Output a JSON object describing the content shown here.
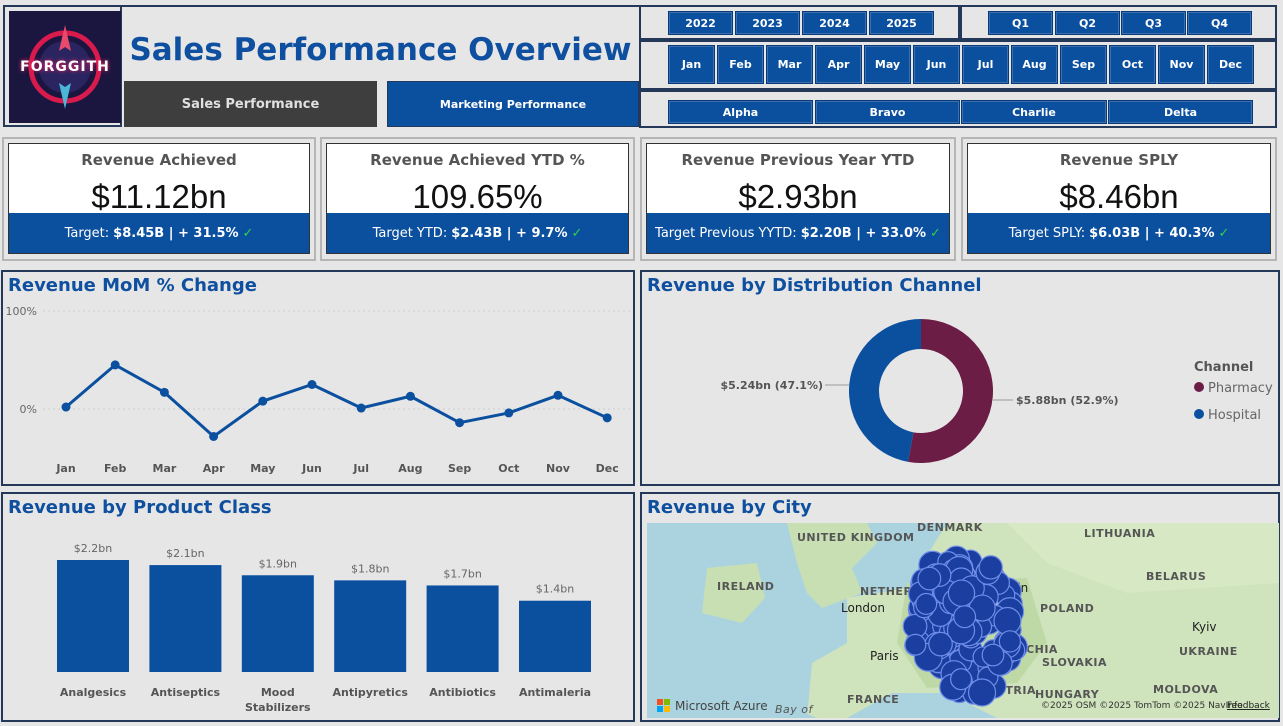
{
  "header": {
    "logo_text": "FORGGITH",
    "title": "Sales Performance Overview",
    "nav": {
      "sales": "Sales Performance",
      "marketing": "Marketing Performance"
    }
  },
  "slicers": {
    "years": [
      "2022",
      "2023",
      "2024",
      "2025"
    ],
    "quarters": [
      "Q1",
      "Q2",
      "Q3",
      "Q4"
    ],
    "months": [
      "Jan",
      "Feb",
      "Mar",
      "Apr",
      "May",
      "Jun",
      "Jul",
      "Aug",
      "Sep",
      "Oct",
      "Nov",
      "Dec"
    ],
    "teams": [
      "Alpha",
      "Bravo",
      "Charlie",
      "Delta"
    ]
  },
  "kpis": [
    {
      "title": "Revenue Achieved",
      "value": "$11.12bn",
      "foot_label": "Target:",
      "foot_value": "$8.45B | + 31.5%",
      "check": "✓"
    },
    {
      "title": "Revenue Achieved YTD %",
      "value": "109.65%",
      "foot_label": "Target YTD:",
      "foot_value": "$2.43B | + 9.7%",
      "check": "✓"
    },
    {
      "title": "Revenue Previous Year YTD",
      "value": "$2.93bn",
      "foot_label": "Target Previous YYTD:",
      "foot_value": "$2.20B | + 33.0%",
      "check": "✓"
    },
    {
      "title": "Revenue SPLY",
      "value": "$8.46bn",
      "foot_label": "Target SPLY:",
      "foot_value": "$6.03B | + 40.3%",
      "check": "✓"
    }
  ],
  "mom_chart": {
    "title": "Revenue MoM % Change",
    "y_ticks": [
      "100%",
      "0%"
    ]
  },
  "channel_chart": {
    "title": "Revenue by Distribution Channel",
    "legend_title": "Channel",
    "label_hospital": "$5.24bn (47.1%)",
    "label_pharmacy": "$5.88bn (52.9%)"
  },
  "product_chart": {
    "title": "Revenue by Product Class",
    "value_labels": [
      "$2.2bn",
      "$2.1bn",
      "$1.9bn",
      "$1.8bn",
      "$1.7bn",
      "$1.4bn"
    ],
    "category_labels": [
      "Analgesics",
      "Antiseptics",
      "Mood Stabilizers",
      "Antipyretics",
      "Antibiotics",
      "Antimaleria"
    ]
  },
  "city_map": {
    "title": "Revenue by City",
    "labels": {
      "denmark": "DENMARK",
      "uk": "UNITED KINGDOM",
      "ireland": "IRELAND",
      "netherlands": "NETHERL",
      "london": "London",
      "berlin": "lin",
      "lithuania": "LITHUANIA",
      "belarus": "BELARUS",
      "poland": "POLAND",
      "kyiv": "Kyiv",
      "czechia": "CZECHIA",
      "slovakia": "SLOVAKIA",
      "ukraine": "UKRAINE",
      "paris": "Paris",
      "france": "FRANCE",
      "austria": "STRIA",
      "hungary": "HUNGARY",
      "moldova": "MOLDOVA",
      "bay": "Bay of"
    },
    "attribution": "©2025 OSM ©2025 TomTom ©2025 NavInfo",
    "feedback": "Feedback",
    "azure": "Microsoft Azure"
  },
  "chart_data": [
    {
      "type": "line",
      "title": "Revenue MoM % Change",
      "x": [
        "Jan",
        "Feb",
        "Mar",
        "Apr",
        "May",
        "Jun",
        "Jul",
        "Aug",
        "Sep",
        "Oct",
        "Nov",
        "Dec"
      ],
      "series": [
        {
          "values": [
            2,
            45,
            17,
            -28,
            8,
            25,
            1,
            13,
            -14,
            -4,
            14,
            -9
          ]
        }
      ],
      "y_ticks": [
        "100%",
        "0%"
      ],
      "ylim": [
        -40,
        100
      ],
      "color": "#0b4f9f",
      "grid": true
    },
    {
      "type": "pie",
      "title": "Revenue by Distribution Channel",
      "donut": true,
      "legend_title": "Channel",
      "legend_position": "right",
      "slices": [
        {
          "name": "Pharmacy",
          "value": 5.88,
          "percent": 52.9,
          "color": "#6b1d45"
        },
        {
          "name": "Hospital",
          "value": 5.24,
          "percent": 47.1,
          "color": "#0b4f9f"
        }
      ]
    },
    {
      "type": "bar",
      "title": "Revenue by Product Class",
      "categories": [
        "Analgesics",
        "Antiseptics",
        "Mood Stabilizers",
        "Antipyretics",
        "Antibiotics",
        "Antimaleria"
      ],
      "values": [
        2.2,
        2.1,
        1.9,
        1.8,
        1.7,
        1.4
      ],
      "ylim": [
        0,
        2.2
      ],
      "color": "#0b4f9f"
    }
  ],
  "colors": {
    "primary": "#0b4f9f",
    "pharmacy": "#6b1d45",
    "check": "#35d04a",
    "border": "#24395a"
  }
}
